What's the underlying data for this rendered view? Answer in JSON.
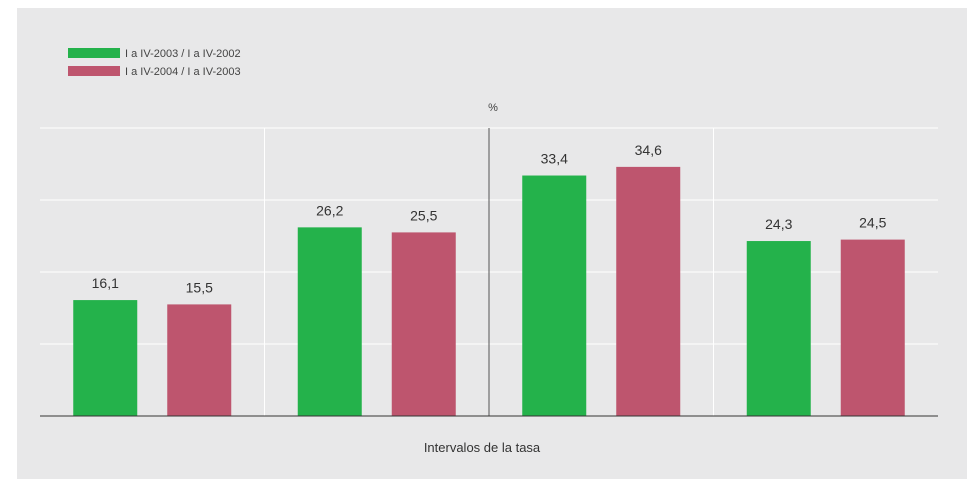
{
  "chart_data": {
    "type": "bar",
    "unit": "%",
    "xlabel": "Intervalos de la tasa",
    "ylim": [
      0,
      40
    ],
    "gridlines": [
      10,
      20,
      30,
      40
    ],
    "legend_position": "top-left",
    "category_count": 4,
    "series": [
      {
        "name": "I a IV-2003 / I a IV-2002",
        "color": "#24b24b",
        "values": [
          16.1,
          26.2,
          33.4,
          24.3
        ],
        "labels": [
          "16,1",
          "26,2",
          "33,4",
          "24,3"
        ]
      },
      {
        "name": "I a IV-2004 / I a IV-2003",
        "color": "#be556e",
        "values": [
          15.5,
          25.5,
          34.6,
          24.5
        ],
        "labels": [
          "15,5",
          "25,5",
          "34,6",
          "24,5"
        ]
      }
    ]
  }
}
